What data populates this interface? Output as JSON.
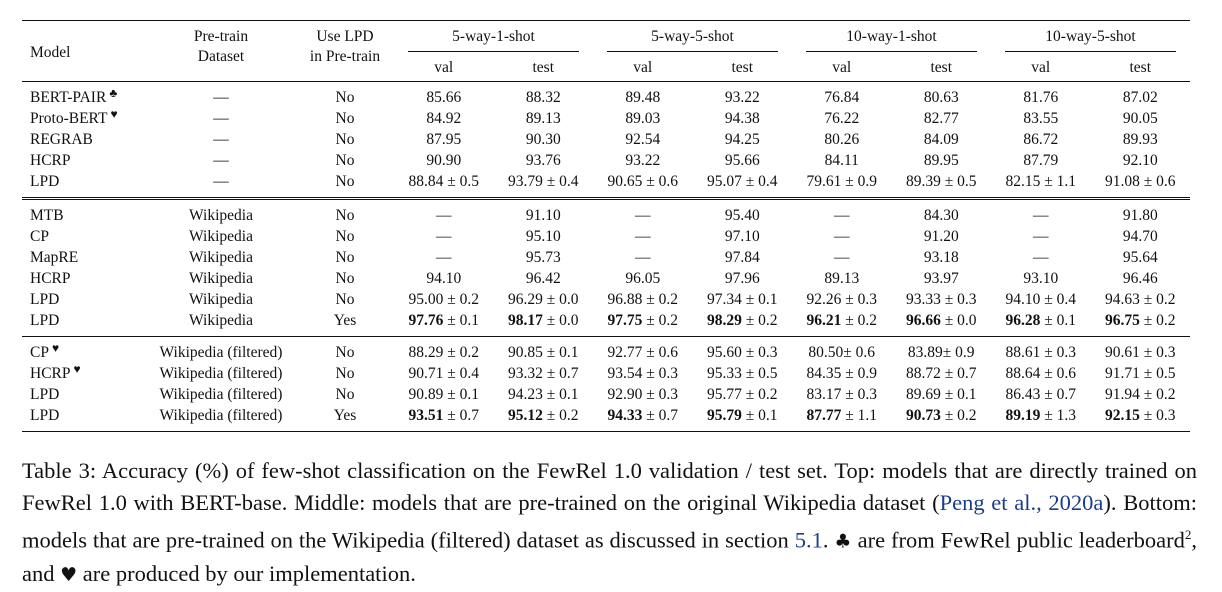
{
  "header": {
    "model": "Model",
    "pretrain_l1": "Pre-train",
    "pretrain_l2": "Dataset",
    "uselpd_l1": "Use LPD",
    "uselpd_l2": "in Pre-train",
    "groups": [
      "5-way-1-shot",
      "5-way-5-shot",
      "10-way-1-shot",
      "10-way-5-shot"
    ],
    "val": "val",
    "test": "test"
  },
  "sections": [
    {
      "rows": [
        {
          "model": "BERT-PAIR",
          "mark": "♣",
          "dataset": "—",
          "lpd": "No",
          "cells": [
            {
              "v": "85.66"
            },
            {
              "v": "88.32"
            },
            {
              "v": "89.48"
            },
            {
              "v": "93.22"
            },
            {
              "v": "76.84"
            },
            {
              "v": "80.63"
            },
            {
              "v": "81.76"
            },
            {
              "v": "87.02"
            }
          ]
        },
        {
          "model": "Proto-BERT",
          "mark": "♥",
          "dataset": "—",
          "lpd": "No",
          "cells": [
            {
              "v": "84.92"
            },
            {
              "v": "89.13"
            },
            {
              "v": "89.03"
            },
            {
              "v": "94.38"
            },
            {
              "v": "76.22"
            },
            {
              "v": "82.77"
            },
            {
              "v": "83.55"
            },
            {
              "v": "90.05"
            }
          ]
        },
        {
          "model": "REGRAB",
          "mark": "",
          "dataset": "—",
          "lpd": "No",
          "cells": [
            {
              "v": "87.95"
            },
            {
              "v": "90.30"
            },
            {
              "v": "92.54"
            },
            {
              "v": "94.25"
            },
            {
              "v": "80.26"
            },
            {
              "v": "84.09"
            },
            {
              "v": "86.72"
            },
            {
              "v": "89.93"
            }
          ]
        },
        {
          "model": "HCRP",
          "mark": "",
          "dataset": "—",
          "lpd": "No",
          "cells": [
            {
              "v": "90.90"
            },
            {
              "v": "93.76"
            },
            {
              "v": "93.22"
            },
            {
              "v": "95.66"
            },
            {
              "v": "84.11"
            },
            {
              "v": "89.95"
            },
            {
              "v": "87.79"
            },
            {
              "v": "92.10"
            }
          ]
        },
        {
          "model": "LPD",
          "mark": "",
          "dataset": "—",
          "lpd": "No",
          "cells": [
            {
              "v": "88.84",
              "s": " ± 0.5"
            },
            {
              "v": "93.79",
              "s": " ± 0.4"
            },
            {
              "v": "90.65",
              "s": " ± 0.6"
            },
            {
              "v": "95.07",
              "s": " ± 0.4"
            },
            {
              "v": "79.61",
              "s": " ± 0.9"
            },
            {
              "v": "89.39",
              "s": " ± 0.5"
            },
            {
              "v": "82.15",
              "s": " ± 1.1"
            },
            {
              "v": "91.08",
              "s": " ± 0.6"
            }
          ]
        }
      ]
    },
    {
      "rows": [
        {
          "model": "MTB",
          "mark": "",
          "dataset": "Wikipedia",
          "lpd": "No",
          "cells": [
            {
              "v": "—"
            },
            {
              "v": "91.10"
            },
            {
              "v": "—"
            },
            {
              "v": "95.40"
            },
            {
              "v": "—"
            },
            {
              "v": "84.30"
            },
            {
              "v": "—"
            },
            {
              "v": "91.80"
            }
          ]
        },
        {
          "model": "CP",
          "mark": "",
          "dataset": "Wikipedia",
          "lpd": "No",
          "cells": [
            {
              "v": "—"
            },
            {
              "v": "95.10"
            },
            {
              "v": "—"
            },
            {
              "v": "97.10"
            },
            {
              "v": "—"
            },
            {
              "v": "91.20"
            },
            {
              "v": "—"
            },
            {
              "v": "94.70"
            }
          ]
        },
        {
          "model": "MapRE",
          "mark": "",
          "dataset": "Wikipedia",
          "lpd": "No",
          "cells": [
            {
              "v": "—"
            },
            {
              "v": "95.73"
            },
            {
              "v": "—"
            },
            {
              "v": "97.84"
            },
            {
              "v": "—"
            },
            {
              "v": "93.18"
            },
            {
              "v": "—"
            },
            {
              "v": "95.64"
            }
          ]
        },
        {
          "model": "HCRP",
          "mark": "",
          "dataset": "Wikipedia",
          "lpd": "No",
          "cells": [
            {
              "v": "94.10"
            },
            {
              "v": "96.42"
            },
            {
              "v": "96.05"
            },
            {
              "v": "97.96"
            },
            {
              "v": "89.13"
            },
            {
              "v": "93.97"
            },
            {
              "v": "93.10"
            },
            {
              "v": "96.46"
            }
          ]
        },
        {
          "model": "LPD",
          "mark": "",
          "dataset": "Wikipedia",
          "lpd": "No",
          "cells": [
            {
              "v": "95.00",
              "s": " ± 0.2"
            },
            {
              "v": "96.29",
              "s": " ± 0.0"
            },
            {
              "v": "96.88",
              "s": " ± 0.2"
            },
            {
              "v": "97.34",
              "s": " ± 0.1"
            },
            {
              "v": "92.26",
              "s": " ± 0.3"
            },
            {
              "v": "93.33",
              "s": " ± 0.3"
            },
            {
              "v": "94.10",
              "s": " ± 0.4"
            },
            {
              "v": "94.63",
              "s": " ± 0.2"
            }
          ]
        },
        {
          "model": "LPD",
          "mark": "",
          "dataset": "Wikipedia",
          "lpd": "Yes",
          "cells": [
            {
              "v": "97.76",
              "s": " ± 0.1",
              "b": true
            },
            {
              "v": "98.17",
              "s": " ± 0.0",
              "b": true
            },
            {
              "v": "97.75",
              "s": " ± 0.2",
              "b": true
            },
            {
              "v": "98.29",
              "s": " ± 0.2",
              "b": true
            },
            {
              "v": "96.21",
              "s": " ± 0.2",
              "b": true
            },
            {
              "v": "96.66",
              "s": " ± 0.0",
              "b": true
            },
            {
              "v": "96.28",
              "s": " ± 0.1",
              "b": true
            },
            {
              "v": "96.75",
              "s": " ± 0.2",
              "b": true
            }
          ]
        }
      ]
    },
    {
      "rows": [
        {
          "model": "CP",
          "mark": "♥",
          "dataset": "Wikipedia (filtered)",
          "lpd": "No",
          "cells": [
            {
              "v": "88.29",
              "s": " ± 0.2"
            },
            {
              "v": "90.85",
              "s": " ± 0.1"
            },
            {
              "v": "92.77",
              "s": " ± 0.6"
            },
            {
              "v": "95.60",
              "s": " ± 0.3"
            },
            {
              "v": "80.50",
              "s": "± 0.6"
            },
            {
              "v": "83.89",
              "s": "± 0.9"
            },
            {
              "v": "88.61",
              "s": " ± 0.3"
            },
            {
              "v": "90.61",
              "s": " ± 0.3"
            }
          ]
        },
        {
          "model": "HCRP",
          "mark": "♥",
          "dataset": "Wikipedia (filtered)",
          "lpd": "No",
          "cells": [
            {
              "v": "90.71",
              "s": " ± 0.4"
            },
            {
              "v": "93.32",
              "s": " ± 0.7"
            },
            {
              "v": "93.54",
              "s": " ± 0.3"
            },
            {
              "v": "95.33",
              "s": " ± 0.5"
            },
            {
              "v": "84.35",
              "s": " ± 0.9"
            },
            {
              "v": "88.72",
              "s": " ± 0.7"
            },
            {
              "v": "88.64",
              "s": " ± 0.6"
            },
            {
              "v": "91.71",
              "s": " ± 0.5"
            }
          ]
        },
        {
          "model": "LPD",
          "mark": "",
          "dataset": "Wikipedia (filtered)",
          "lpd": "No",
          "cells": [
            {
              "v": "90.89",
              "s": " ± 0.1"
            },
            {
              "v": "94.23",
              "s": " ± 0.1"
            },
            {
              "v": "92.90",
              "s": " ± 0.3"
            },
            {
              "v": "95.77",
              "s": " ± 0.2"
            },
            {
              "v": "83.17",
              "s": " ± 0.3"
            },
            {
              "v": "89.69",
              "s": " ± 0.1"
            },
            {
              "v": "86.43",
              "s": " ± 0.7"
            },
            {
              "v": "91.94",
              "s": " ± 0.2"
            }
          ]
        },
        {
          "model": "LPD",
          "mark": "",
          "dataset": "Wikipedia (filtered)",
          "lpd": "Yes",
          "cells": [
            {
              "v": "93.51",
              "s": " ± 0.7",
              "b": true
            },
            {
              "v": "95.12",
              "s": " ± 0.2",
              "b": true
            },
            {
              "v": "94.33",
              "s": " ± 0.7",
              "b": true
            },
            {
              "v": "95.79",
              "s": " ± 0.1",
              "b": true
            },
            {
              "v": "87.77",
              "s": " ± 1.1",
              "b": true
            },
            {
              "v": "90.73",
              "s": " ± 0.2",
              "b": true
            },
            {
              "v": "89.19",
              "s": " ± 1.3",
              "b": true
            },
            {
              "v": "92.15",
              "s": " ± 0.3",
              "b": true
            }
          ]
        }
      ]
    }
  ],
  "caption": {
    "p1": "Table 3: Accuracy (%) of few-shot classification on the FewRel 1.0 validation / test set. Top: models that are directly trained on FewRel 1.0 with BERT-base. Middle: models that are pre-trained on the original Wikipedia dataset (",
    "cite": "Peng et al., 2020a",
    "p2": "). Bottom: models that are pre-trained on the Wikipedia (filtered) dataset as discussed in section ",
    "section_ref": "5.1",
    "p3": ". ",
    "club": "♣",
    "p4": " are from FewRel public leaderboard",
    "footnote": "2",
    "p5": ", and ",
    "heart": "♥",
    "p6": " are produced by our implementation."
  }
}
